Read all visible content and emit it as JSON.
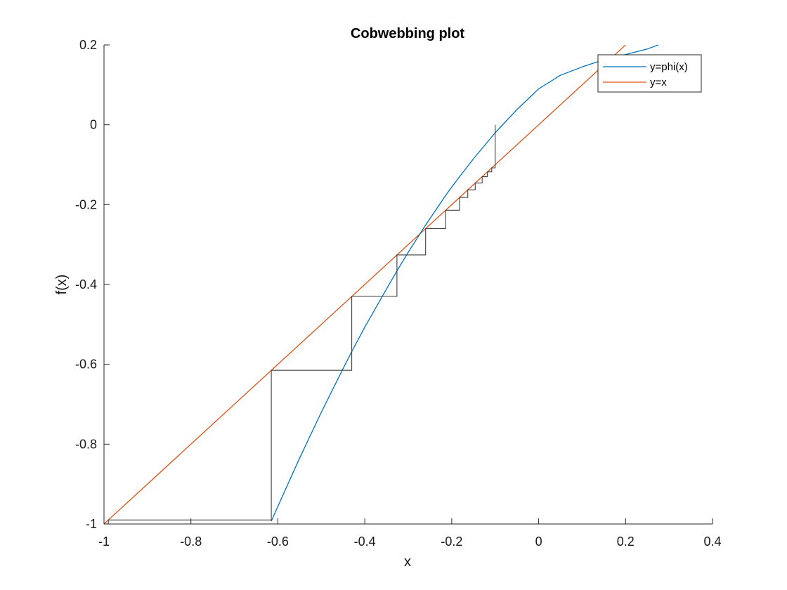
{
  "chart_data": {
    "type": "line",
    "title": "Cobwebbing plot",
    "xlabel": "x",
    "ylabel": "f(x)",
    "xlim": [
      -1,
      0.4
    ],
    "ylim": [
      -1,
      0.2
    ],
    "xticks": [
      -1,
      -0.8,
      -0.6,
      -0.4,
      -0.2,
      0,
      0.2,
      0.4
    ],
    "xtick_labels": [
      "-1",
      "-0.8",
      "-0.6",
      "-0.4",
      "-0.2",
      "0",
      "0.2",
      "0.4"
    ],
    "yticks": [
      -1,
      -0.8,
      -0.6,
      -0.4,
      -0.2,
      0,
      0.2
    ],
    "ytick_labels": [
      "-1",
      "-0.8",
      "-0.6",
      "-0.4",
      "-0.2",
      "0",
      "0.2"
    ],
    "grid": false,
    "legend_position": "top-right",
    "series": [
      {
        "name": "y=phi(x)",
        "color": "#0072bd",
        "x": [
          -0.615,
          -0.6,
          -0.55,
          -0.5,
          -0.45,
          -0.43,
          -0.4,
          -0.35,
          -0.326,
          -0.3,
          -0.26,
          -0.25,
          -0.214,
          -0.2,
          -0.182,
          -0.15,
          -0.1,
          -0.05,
          0,
          0.05,
          0.1,
          0.15,
          0.2,
          0.25,
          0.275
        ],
        "y": [
          -0.993,
          -0.956,
          -0.835,
          -0.72,
          -0.611,
          -0.568,
          -0.507,
          -0.411,
          -0.366,
          -0.319,
          -0.251,
          -0.235,
          -0.177,
          -0.156,
          -0.13,
          -0.085,
          -0.02,
          0.038,
          0.09,
          0.124,
          0.145,
          0.163,
          0.176,
          0.19,
          0.2
        ]
      },
      {
        "name": "y=x",
        "color": "#d95319",
        "x": [
          -1,
          0.2
        ],
        "y": [
          -1,
          0.2
        ]
      }
    ],
    "cobweb": {
      "color": "#404040",
      "x": [
        -0.1,
        -0.1,
        -0.108,
        -0.108,
        -0.118,
        -0.118,
        -0.13,
        -0.13,
        -0.146,
        -0.146,
        -0.163,
        -0.163,
        -0.182,
        -0.182,
        -0.214,
        -0.214,
        -0.26,
        -0.26,
        -0.326,
        -0.326,
        -0.43,
        -0.43,
        -0.615,
        -0.615,
        -0.99,
        -0.99
      ],
      "y": [
        0,
        -0.108,
        -0.108,
        -0.118,
        -0.118,
        -0.13,
        -0.13,
        -0.146,
        -0.146,
        -0.163,
        -0.163,
        -0.182,
        -0.182,
        -0.214,
        -0.214,
        -0.26,
        -0.26,
        -0.326,
        -0.326,
        -0.43,
        -0.43,
        -0.615,
        -0.615,
        -0.99,
        -0.99,
        -1
      ]
    }
  }
}
